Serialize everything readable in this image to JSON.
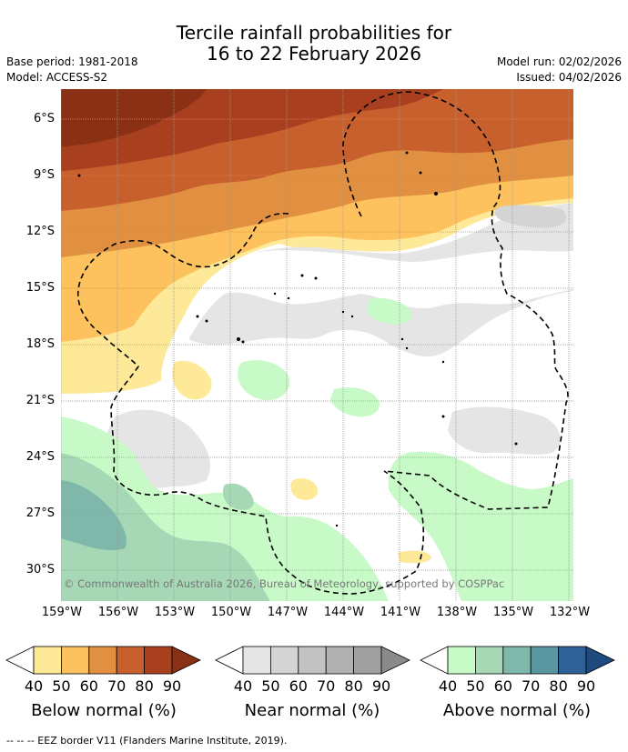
{
  "title_line1": "Tercile rainfall probabilities for",
  "title_line2": "16 to 22 February 2026",
  "base_period": "Base period: 1981-2018",
  "model": "Model: ACCESS-S2",
  "model_run": "Model run: 02/02/2026",
  "issued": "Issued: 04/02/2026",
  "lat_ticks": [
    "6°S",
    "9°S",
    "12°S",
    "15°S",
    "18°S",
    "21°S",
    "24°S",
    "27°S",
    "30°S"
  ],
  "lon_ticks": [
    "159°W",
    "156°W",
    "153°W",
    "150°W",
    "147°W",
    "144°W",
    "141°W",
    "138°W",
    "135°W",
    "132°W"
  ],
  "copyright": "© Commonwealth of Australia 2026, Bureau of Meteorology, supported by COSPPac",
  "colorbars": [
    {
      "label": "Below normal (%)",
      "ticks": [
        "40",
        "50",
        "60",
        "70",
        "80",
        "90"
      ],
      "colors": [
        "#fee999",
        "#fdc25d",
        "#e09040",
        "#c8602e",
        "#a8401f",
        "#8a3015"
      ]
    },
    {
      "label": "Near normal (%)",
      "ticks": [
        "40",
        "50",
        "60",
        "70",
        "80",
        "90"
      ],
      "colors": [
        "#e5e5e5",
        "#d4d4d4",
        "#c2c2c2",
        "#b0b0b0",
        "#a0a0a0",
        "#8a8a8a"
      ]
    },
    {
      "label": "Above normal (%)",
      "ticks": [
        "40",
        "50",
        "60",
        "70",
        "80",
        "90"
      ],
      "colors": [
        "#c8fac8",
        "#a6d8b6",
        "#7fb8ab",
        "#5a96a0",
        "#2f6098",
        "#1e4a80"
      ]
    }
  ],
  "footer": "-- -- -- EEZ border V11 (Flanders Marine Institute, 2019)."
}
